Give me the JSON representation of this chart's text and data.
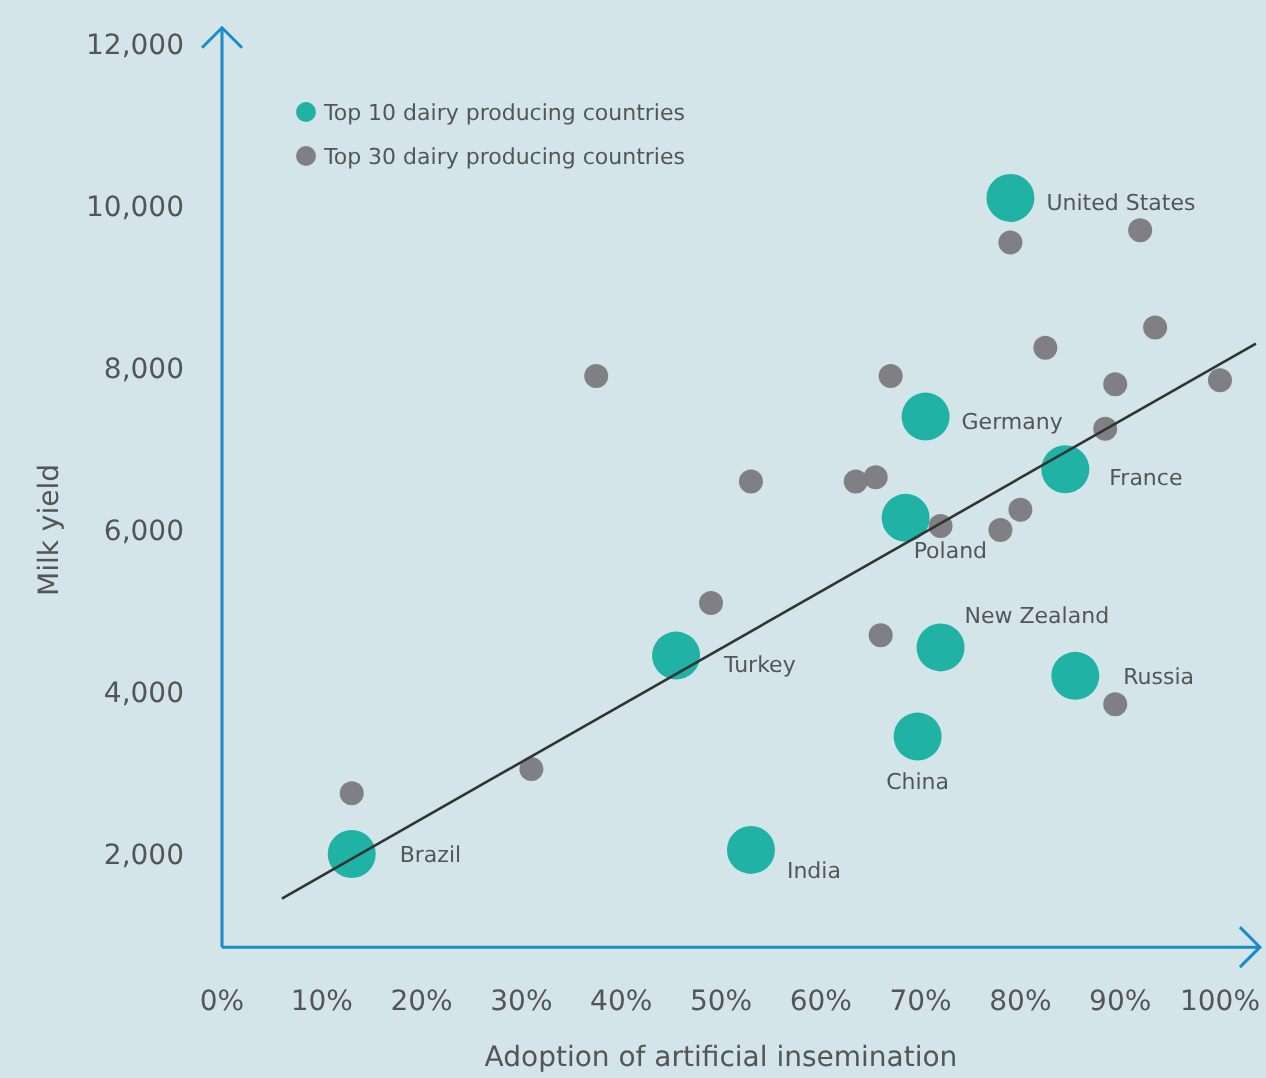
{
  "chart_data": {
    "type": "scatter",
    "xlabel": "Adoption of artificial insemination",
    "ylabel": "Milk yield",
    "xlim": [
      0,
      104
    ],
    "ylim": [
      850,
      12200
    ],
    "xticks": [
      {
        "value": 0,
        "label": "0%"
      },
      {
        "value": 10,
        "label": "10%"
      },
      {
        "value": 20,
        "label": "20%"
      },
      {
        "value": 30,
        "label": "30%"
      },
      {
        "value": 40,
        "label": "40%"
      },
      {
        "value": 50,
        "label": "50%"
      },
      {
        "value": 60,
        "label": "60%"
      },
      {
        "value": 70,
        "label": "70%"
      },
      {
        "value": 80,
        "label": "80%"
      },
      {
        "value": 90,
        "label": "90%"
      },
      {
        "value": 100,
        "label": "100%"
      }
    ],
    "yticks": [
      {
        "value": 2000,
        "label": "2,000"
      },
      {
        "value": 4000,
        "label": "4,000"
      },
      {
        "value": 6000,
        "label": "6,000"
      },
      {
        "value": 8000,
        "label": "8,000"
      },
      {
        "value": 10000,
        "label": "10,000"
      },
      {
        "value": 12000,
        "label": "12,000"
      }
    ],
    "grid": false,
    "legend": "top left",
    "marker": "circle",
    "series": [
      {
        "name": "Top 10 dairy producing countries",
        "color": "#20b2a4",
        "x": [
          13,
          45.5,
          53,
          68.5,
          70.5,
          72,
          69.7,
          79,
          84.5,
          85.5
        ],
        "values": [
          2000,
          4450,
          2050,
          6150,
          7400,
          4550,
          3450,
          10100,
          6750,
          4200
        ]
      },
      {
        "name": "Top 30 dairy producing countries",
        "color": "#808084",
        "x": [
          37.5,
          49,
          31,
          13,
          79,
          92,
          93.5,
          82.5,
          67,
          89.5,
          100,
          88.5,
          53,
          63.5,
          65.5,
          80,
          72,
          78,
          66,
          89.5
        ],
        "values": [
          7900,
          5100,
          3050,
          2750,
          9550,
          9700,
          8500,
          8250,
          7900,
          7800,
          7850,
          7250,
          6600,
          6600,
          6650,
          6250,
          6050,
          6000,
          4700,
          3850
        ]
      },
      {
        "type": "line",
        "marker": "none",
        "color": "#333333",
        "x": [
          6,
          103.6
        ],
        "values": [
          1450,
          8300
        ]
      }
    ],
    "annotations": [
      {
        "text": "Brazil",
        "x": 13,
        "y": 2000
      },
      {
        "text": "Turkey",
        "x": 45.5,
        "y": 4450
      },
      {
        "text": "India",
        "x": 53,
        "y": 2050
      },
      {
        "text": "Poland",
        "x": 68.5,
        "y": 6150
      },
      {
        "text": "Germany",
        "x": 70.5,
        "y": 7400
      },
      {
        "text": "New Zealand",
        "x": 72,
        "y": 4550
      },
      {
        "text": "China",
        "x": 69.7,
        "y": 3450
      },
      {
        "text": "United States",
        "x": 79,
        "y": 10100
      },
      {
        "text": "France",
        "x": 84.5,
        "y": 6750
      },
      {
        "text": "Russia",
        "x": 85.5,
        "y": 4200
      }
    ]
  }
}
